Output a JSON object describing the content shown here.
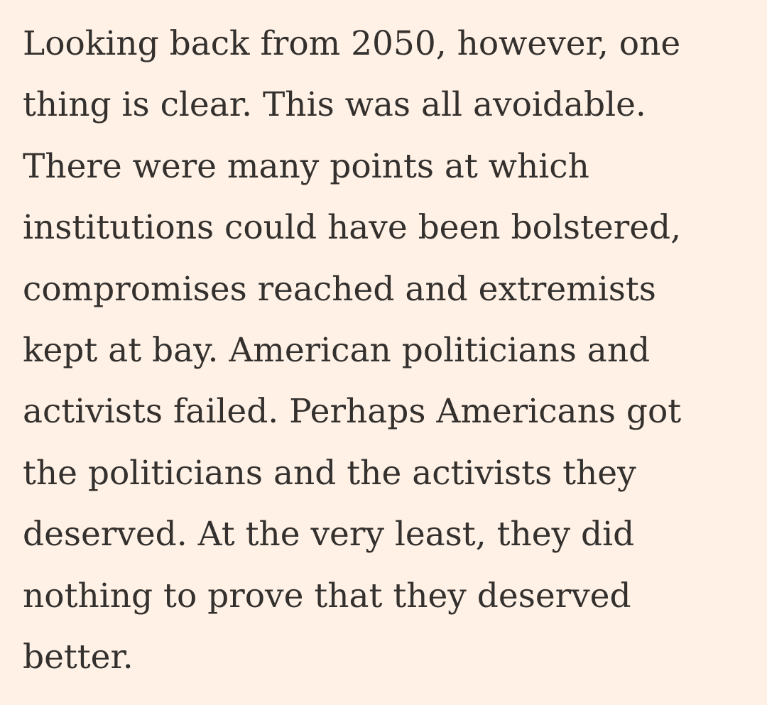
{
  "paragraph": {
    "lines": [
      "Looking back from 2050, however, one",
      "thing is clear. This was all avoidable.",
      "There were many points at which",
      "institutions could have been bolstered,",
      "compromises reached and extremists",
      "kept at bay. American politicians and",
      "activists failed. Perhaps Americans got",
      "the politicians and the activists they",
      "deserved. At the very least, they did",
      "nothing to prove that they deserved",
      "better."
    ]
  }
}
